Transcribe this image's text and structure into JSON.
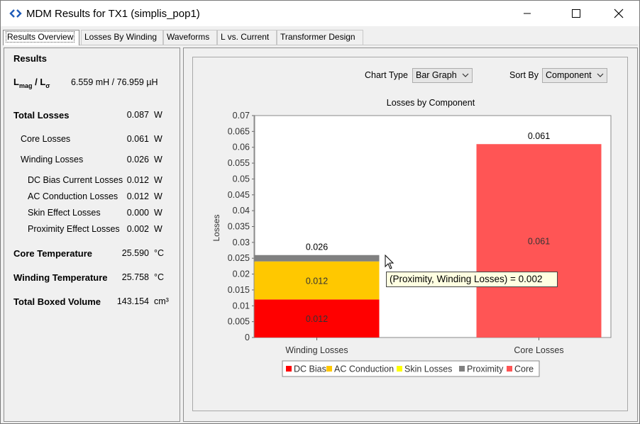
{
  "window": {
    "title": "MDM Results for TX1 (simplis_pop1)"
  },
  "tabs": [
    {
      "label": "Results Overview",
      "active": true
    },
    {
      "label": "Losses By Winding",
      "active": false
    },
    {
      "label": "Waveforms",
      "active": false
    },
    {
      "label": "L vs. Current",
      "active": false
    },
    {
      "label": "Transformer Design",
      "active": false
    }
  ],
  "results": {
    "heading": "Results",
    "inductance": {
      "label_main_1": "L",
      "label_sub_1": "mag",
      "label_sep": " / ",
      "label_main_2": "L",
      "label_sub_2": "σ",
      "value": "6.559 mH / 76.959 µH"
    },
    "total_losses": {
      "label": "Total Losses",
      "value": "0.087",
      "unit": "W"
    },
    "core_losses": {
      "label": "Core Losses",
      "value": "0.061",
      "unit": "W"
    },
    "winding_losses": {
      "label": "Winding Losses",
      "value": "0.026",
      "unit": "W"
    },
    "dc_bias": {
      "label": "DC Bias Current Losses",
      "value": "0.012",
      "unit": "W"
    },
    "ac_conduction": {
      "label": "AC Conduction Losses",
      "value": "0.012",
      "unit": "W"
    },
    "skin_effect": {
      "label": "Skin Effect Losses",
      "value": "0.000",
      "unit": "W"
    },
    "proximity_effect": {
      "label": "Proximity Effect Losses",
      "value": "0.002",
      "unit": "W"
    },
    "core_temp": {
      "label": "Core Temperature",
      "value": "25.590",
      "unit": "°C"
    },
    "winding_temp": {
      "label": "Winding Temperature",
      "value": "25.758",
      "unit": "°C"
    },
    "boxed_volume": {
      "label": "Total Boxed Volume",
      "value": "143.154",
      "unit": "cm³"
    }
  },
  "controls": {
    "chart_type_label": "Chart Type",
    "chart_type_value": "Bar Graph",
    "sort_by_label": "Sort By",
    "sort_by_value": "Component"
  },
  "tooltip": {
    "text": "(Proximity, Winding Losses) = 0.002"
  },
  "chart_data": {
    "type": "bar",
    "stacked": true,
    "title": "Losses by Component",
    "xlabel": "",
    "ylabel": "Losses",
    "ylim": [
      0,
      0.07
    ],
    "yticks": [
      "0",
      "0.005",
      "0.01",
      "0.015",
      "0.02",
      "0.025",
      "0.03",
      "0.035",
      "0.04",
      "0.045",
      "0.05",
      "0.055",
      "0.06",
      "0.065",
      "0.07"
    ],
    "categories": [
      "Winding Losses",
      "Core Losses"
    ],
    "series": [
      {
        "name": "DC Bias",
        "color": "#ff0000",
        "values": [
          0.012,
          0
        ]
      },
      {
        "name": "AC Conduction",
        "color": "#ffc800",
        "values": [
          0.012,
          0
        ]
      },
      {
        "name": "Skin Losses",
        "color": "#ffff00",
        "values": [
          0.0,
          0
        ]
      },
      {
        "name": "Proximity",
        "color": "#808080",
        "values": [
          0.002,
          0
        ]
      },
      {
        "name": "Core",
        "color": "#ff5555",
        "values": [
          0,
          0.061
        ]
      }
    ],
    "segment_labels": [
      {
        "category": "Winding Losses",
        "series": "DC Bias",
        "text": "0.012"
      },
      {
        "category": "Winding Losses",
        "series": "AC Conduction",
        "text": "0.012"
      },
      {
        "category": "Core Losses",
        "series": "Core",
        "text": "0.061"
      }
    ],
    "total_labels": [
      "0.026",
      "0.061"
    ],
    "legend_position": "bottom",
    "grid": false
  }
}
